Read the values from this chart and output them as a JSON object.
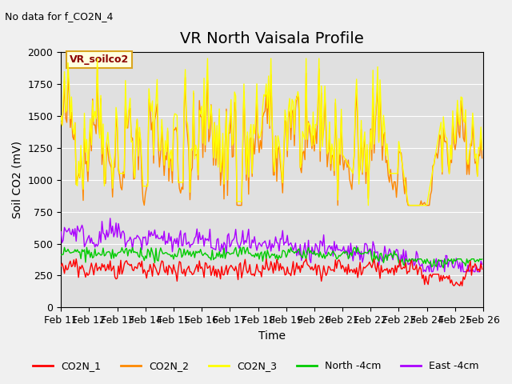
{
  "title": "VR North Vaisala Profile",
  "subtitle": "No data for f_CO2N_4",
  "xlabel": "Time",
  "ylabel": "Soil CO2 (mV)",
  "ylim": [
    0,
    2000
  ],
  "x_tick_labels": [
    "Feb 11",
    "Feb 12",
    "Feb 13",
    "Feb 14",
    "Feb 15",
    "Feb 16",
    "Feb 17",
    "Feb 18",
    "Feb 19",
    "Feb 20",
    "Feb 21",
    "Feb 22",
    "Feb 23",
    "Feb 24",
    "Feb 25",
    "Feb 26"
  ],
  "legend_label": "VR_soilco2",
  "series_colors": {
    "CO2N_1": "#ff0000",
    "CO2N_2": "#ff8800",
    "CO2N_3": "#ffff00",
    "North_4cm": "#00cc00",
    "East_4cm": "#aa00ff"
  },
  "legend_entries": [
    "CO2N_1",
    "CO2N_2",
    "CO2N_3",
    "North -4cm",
    "East -4cm"
  ],
  "fig_facecolor": "#f0f0f0",
  "ax_facecolor": "#e0e0e0",
  "title_fontsize": 14,
  "label_fontsize": 10,
  "tick_fontsize": 9
}
